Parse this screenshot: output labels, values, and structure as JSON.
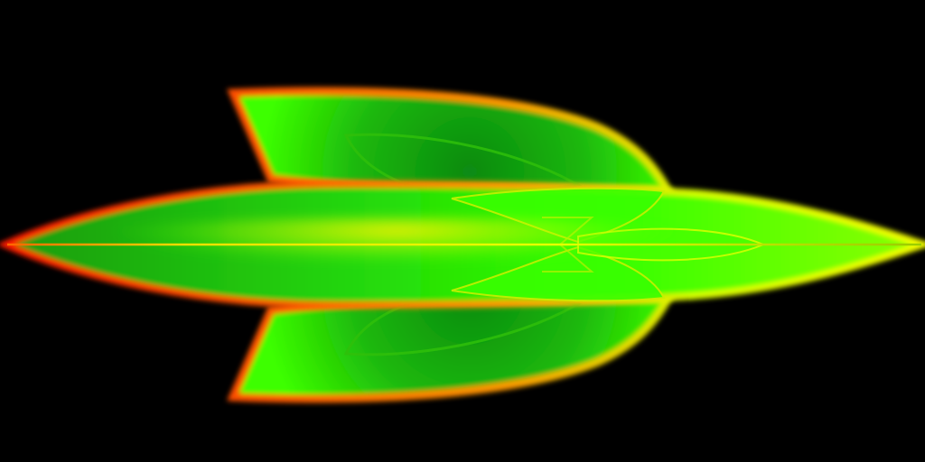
{
  "scene": {
    "subject": "glowing-leaf-shape",
    "colors": {
      "background": "#000000",
      "tail_edge": "#ff1a00",
      "edge_orange": "#ff7a00",
      "nose_edge": "#f5ff00",
      "body_bright": "#33ff00",
      "body_dark": "#0a8a10",
      "midline": "#e6ff00"
    }
  }
}
